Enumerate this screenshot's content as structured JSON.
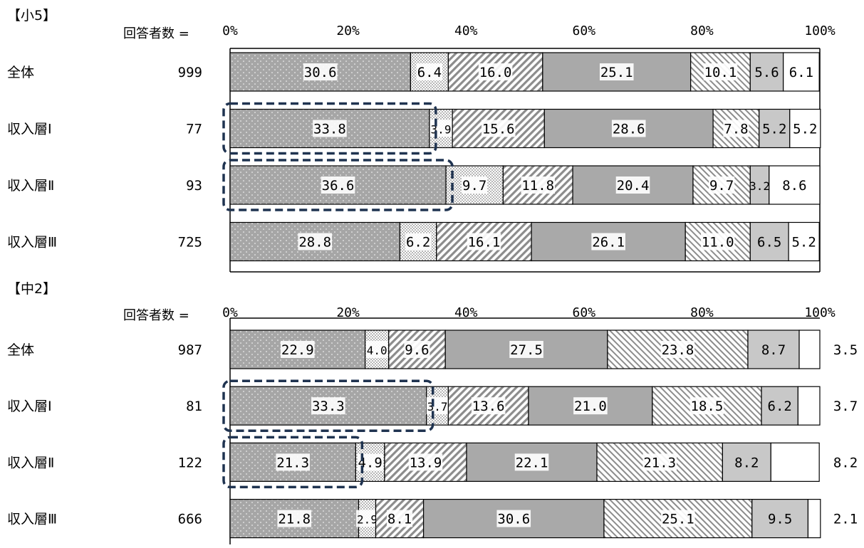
{
  "chart_data": [
    {
      "type": "bar",
      "orientation": "horizontal",
      "stacked": true,
      "title": "【小5】",
      "respondents_label": "回答者数 =",
      "axis_ticks": [
        "0%",
        "20%",
        "40%",
        "60%",
        "80%",
        "100%"
      ],
      "xlim": [
        0,
        100
      ],
      "rows": [
        {
          "label": "全体",
          "n": "999",
          "highlight": false,
          "values": [
            30.6,
            6.4,
            16.0,
            25.1,
            10.1,
            5.6,
            6.1
          ]
        },
        {
          "label": "収入層Ⅰ",
          "n": "77",
          "highlight": true,
          "values": [
            33.8,
            3.9,
            15.6,
            28.6,
            7.8,
            5.2,
            5.2
          ]
        },
        {
          "label": "収入層Ⅱ",
          "n": "93",
          "highlight": true,
          "values": [
            36.6,
            9.7,
            11.8,
            20.4,
            9.7,
            3.2,
            8.6
          ]
        },
        {
          "label": "収入層Ⅲ",
          "n": "725",
          "highlight": false,
          "values": [
            28.8,
            6.2,
            16.1,
            26.1,
            11.0,
            6.5,
            5.2
          ]
        }
      ]
    },
    {
      "type": "bar",
      "orientation": "horizontal",
      "stacked": true,
      "title": "【中2】",
      "respondents_label": "回答者数 =",
      "axis_ticks": [
        "0%",
        "20%",
        "40%",
        "60%",
        "80%",
        "100%"
      ],
      "xlim": [
        0,
        100
      ],
      "rows": [
        {
          "label": "全体",
          "n": "987",
          "highlight": false,
          "values": [
            22.9,
            4.0,
            9.6,
            27.5,
            23.8,
            8.7,
            3.5
          ]
        },
        {
          "label": "収入層Ⅰ",
          "n": "81",
          "highlight": true,
          "values": [
            33.3,
            3.7,
            13.6,
            21.0,
            18.5,
            6.2,
            3.7
          ]
        },
        {
          "label": "収入層Ⅱ",
          "n": "122",
          "highlight": true,
          "values": [
            21.3,
            4.9,
            13.9,
            22.1,
            21.3,
            8.2,
            8.2
          ]
        },
        {
          "label": "収入層Ⅲ",
          "n": "666",
          "highlight": false,
          "values": [
            21.8,
            2.9,
            8.1,
            30.6,
            25.1,
            9.5,
            2.1
          ]
        }
      ]
    }
  ],
  "segment_styles": [
    "dots-dark",
    "dots-light",
    "hatch-back",
    "solid-gray",
    "hatch-forward",
    "light-gray",
    "white"
  ],
  "colors": {
    "dark_gray": "#a6a6a6",
    "mid_gray": "#a9a9a9",
    "light_gray": "#c8c8c8",
    "highlight": "#1f3350",
    "border": "#000000"
  }
}
